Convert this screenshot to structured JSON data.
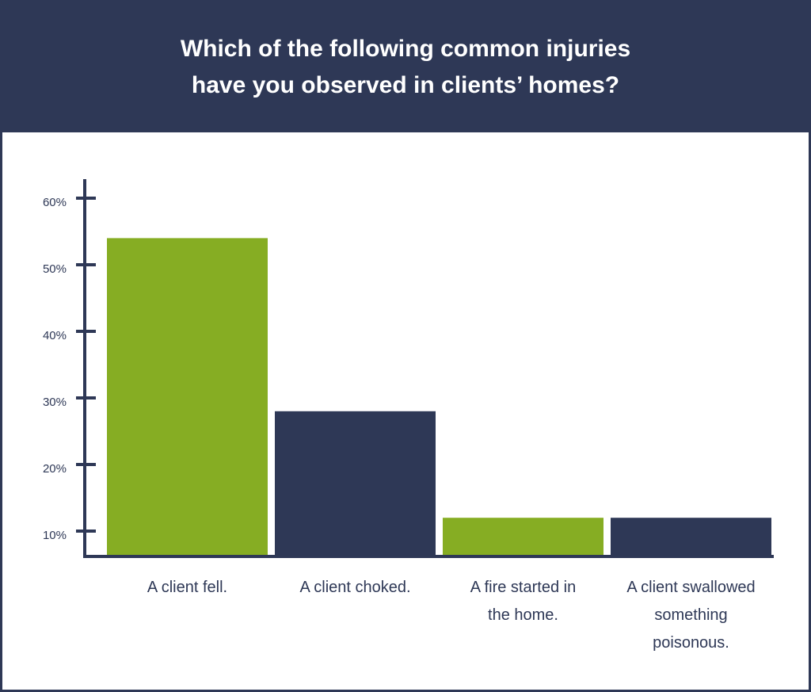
{
  "colors": {
    "navy": "#2e3856",
    "green": "#86ad23",
    "background": "#ffffff"
  },
  "header": {
    "title_line1": "Which of the following common injuries",
    "title_line2": "have you observed in clients’ homes?"
  },
  "chart_data": {
    "type": "bar",
    "title": "Which of the following common injuries have you observed in clients’ homes?",
    "categories": [
      [
        "A client fell."
      ],
      [
        "A client choked."
      ],
      [
        "A fire started in",
        "the home."
      ],
      [
        "A client swallowed",
        "something",
        "poisonous."
      ]
    ],
    "values": [
      54,
      28,
      12,
      12
    ],
    "bar_colors": [
      "#86ad23",
      "#2e3856",
      "#86ad23",
      "#2e3856"
    ],
    "y_ticks": [
      10,
      20,
      30,
      40,
      50,
      60
    ],
    "y_tick_labels": [
      "10%",
      "20%",
      "30%",
      "40%",
      "50%",
      "60%"
    ],
    "ylim": [
      6,
      62
    ],
    "unit": "%",
    "xlabel": "",
    "ylabel": "",
    "grid": false
  }
}
